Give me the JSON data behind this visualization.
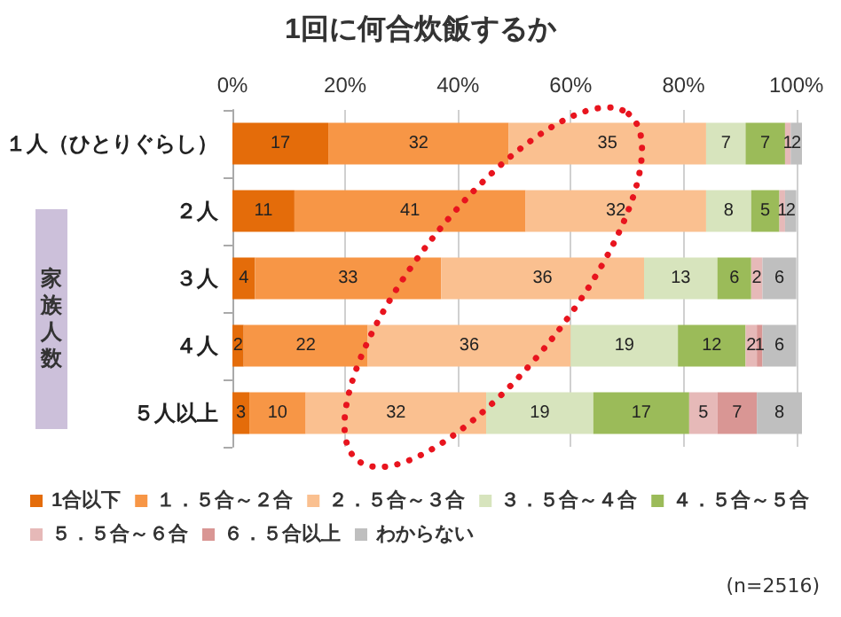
{
  "chart_data": {
    "type": "bar",
    "title": "1回に何合炊飯するか",
    "orientation": "horizontal",
    "stacked": true,
    "data_labels": true,
    "grid": "x",
    "legend": "bottom",
    "categories": [
      "１人（ひとりぐらし）",
      "２人",
      "３人",
      "４人",
      "５人以上"
    ],
    "xlim": [
      0,
      101
    ],
    "xticks": [
      {
        "value": 0,
        "label": "0%"
      },
      {
        "value": 20,
        "label": "20%"
      },
      {
        "value": 40,
        "label": "40%"
      },
      {
        "value": 60,
        "label": "60%"
      },
      {
        "value": 80,
        "label": "80%"
      },
      {
        "value": 100,
        "label": "100%"
      }
    ],
    "series": [
      {
        "name": "1合以下",
        "color": "#e46c0a",
        "values": [
          17,
          11,
          4,
          2,
          3
        ]
      },
      {
        "name": "１．５合～２合",
        "color": "#f79646",
        "values": [
          32,
          41,
          33,
          22,
          10
        ]
      },
      {
        "name": "２．５合～３合",
        "color": "#fac090",
        "values": [
          35,
          32,
          36,
          36,
          32
        ]
      },
      {
        "name": "３．５合～４合",
        "color": "#d7e4bd",
        "values": [
          7,
          8,
          13,
          19,
          19
        ]
      },
      {
        "name": "４．５合～５合",
        "color": "#9bbb59",
        "values": [
          7,
          5,
          6,
          12,
          17
        ]
      },
      {
        "name": "５．５合～６合",
        "color": "#e6b9b8",
        "values": [
          1,
          1,
          2,
          2,
          5
        ]
      },
      {
        "name": "６．５合以上",
        "color": "#d99694",
        "values": [
          null,
          null,
          null,
          1,
          7
        ]
      },
      {
        "name": "わからない",
        "color": "#bfbfbf",
        "values": [
          2,
          2,
          6,
          6,
          8
        ]
      }
    ],
    "annotations": [
      "家族人数",
      "(n=2516)"
    ]
  }
}
